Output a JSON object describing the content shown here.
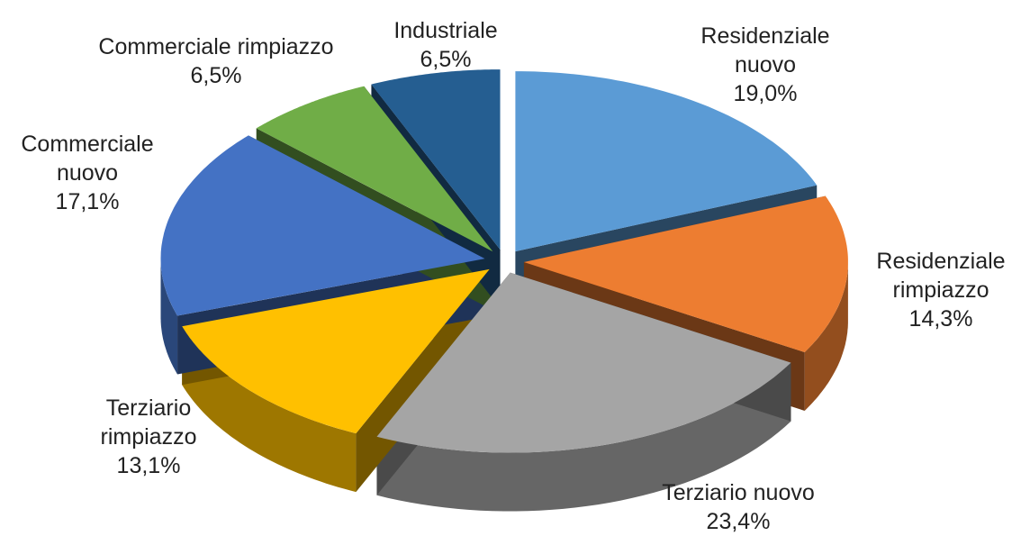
{
  "chart_data": {
    "type": "pie",
    "categories": [
      "Residenziale nuovo",
      "Residenziale rimpiazzo",
      "Terziario nuovo",
      "Terziario rimpiazzo",
      "Commerciale nuovo",
      "Commerciale rimpiazzo",
      "Industriale"
    ],
    "values": [
      19.0,
      14.3,
      23.4,
      13.1,
      17.1,
      6.5,
      6.5
    ],
    "value_labels": [
      "19,0%",
      "14,3%",
      "23,4%",
      "13,1%",
      "17,1%",
      "6,5%",
      "6,5%"
    ],
    "colors": [
      "#5b9bd5",
      "#ed7d31",
      "#a5a5a5",
      "#ffc000",
      "#4472c4",
      "#70ad47",
      "#255e91"
    ]
  }
}
